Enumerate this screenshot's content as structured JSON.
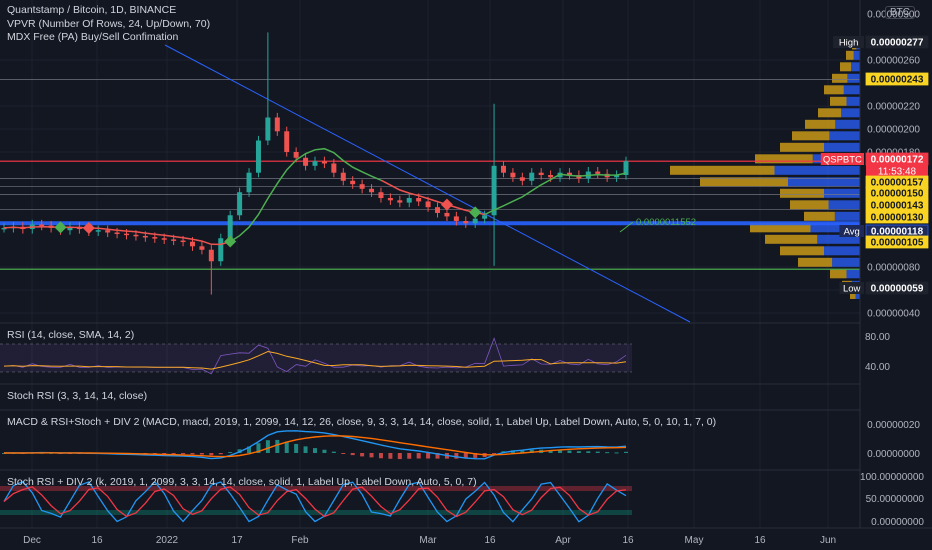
{
  "header": {
    "title": "Quantstamp / Bitcoin, 1D, BINANCE",
    "indicator_1": "VPVR (Number Of Rows, 24, Up/Down, 70)",
    "indicator_2": "MDX Free (PA) Buy/Sell Confimation",
    "currency": "BTC"
  },
  "panes": {
    "rsi_label": "RSI (14, close, SMA, 14, 2)",
    "stoch_rsi_label": "Stoch RSI (3, 3, 14, 14, close)",
    "macd_label": "MACD & RSI+Stoch + DIV 2 (MACD, macd, 2019, 1, 2099, 14, 12, 26, close, 9, 3, 3, 14, 14, close, solid, 1, Label Up, Label Down, Auto, 5, 0, 10, 1, 7, 0)",
    "stoch_div_label": "Stoch RSI + DIV 2 (k, 2019, 1, 2099, 3, 3, 14, 14, close, solid, 1, Label Up, Label Down, Auto, 5, 0, 7)"
  },
  "chart_data": {
    "type": "candlestick",
    "symbol": "QSPBTC",
    "countdown": "11:53:48",
    "y_ticks": [
      "0.00000300",
      "0.00000260",
      "0.00000220",
      "0.00000200",
      "0.00000180",
      "0.00000080",
      "0.00000060",
      "0.00000040"
    ],
    "rsi_ticks": [
      "80.00",
      "40.00"
    ],
    "macd_ticks": [
      "0.00000020",
      "0.00000000"
    ],
    "stoch_ticks": [
      "100.00000000",
      "50.00000000",
      "0.00000000"
    ],
    "x_ticks": [
      "Dec",
      "16",
      "2022",
      "17",
      "Feb",
      "Mar",
      "16",
      "Apr",
      "16",
      "May",
      "16",
      "Jun"
    ],
    "price_tags": [
      {
        "label": "High",
        "value": "0.00000277"
      },
      {
        "label": "",
        "value": "0.00000243"
      },
      {
        "label": "QSPBTC",
        "value": "0.00000172"
      },
      {
        "label": "",
        "value": "0.00000157"
      },
      {
        "label": "",
        "value": "0.00000150"
      },
      {
        "label": "",
        "value": "0.00000143"
      },
      {
        "label": "",
        "value": "0.00000130"
      },
      {
        "label": "Avg",
        "value": "0.00000118"
      },
      {
        "label": "",
        "value": "0.00000105"
      },
      {
        "label": "Low",
        "value": "0.00000059"
      }
    ],
    "annotation": "0.0000011552",
    "horizontal_levels": [
      2.43,
      1.72,
      1.57,
      1.5,
      1.43,
      1.3,
      1.18,
      0.78
    ],
    "price_series": [
      1.14,
      1.15,
      1.13,
      1.17,
      1.16,
      1.14,
      1.12,
      1.15,
      1.13,
      1.11,
      1.12,
      1.1,
      1.09,
      1.08,
      1.07,
      1.06,
      1.05,
      1.04,
      1.03,
      1.02,
      0.98,
      0.95,
      0.85,
      1.05,
      1.25,
      1.45,
      1.62,
      1.9,
      2.1,
      1.98,
      1.8,
      1.75,
      1.68,
      1.72,
      1.7,
      1.62,
      1.55,
      1.52,
      1.48,
      1.45,
      1.4,
      1.38,
      1.36,
      1.4,
      1.37,
      1.32,
      1.27,
      1.24,
      1.2,
      1.18,
      1.22,
      1.25,
      1.68,
      1.62,
      1.58,
      1.55,
      1.62,
      1.6,
      1.58,
      1.62,
      1.6,
      1.57,
      1.63,
      1.61,
      1.58,
      1.6,
      1.72
    ]
  }
}
